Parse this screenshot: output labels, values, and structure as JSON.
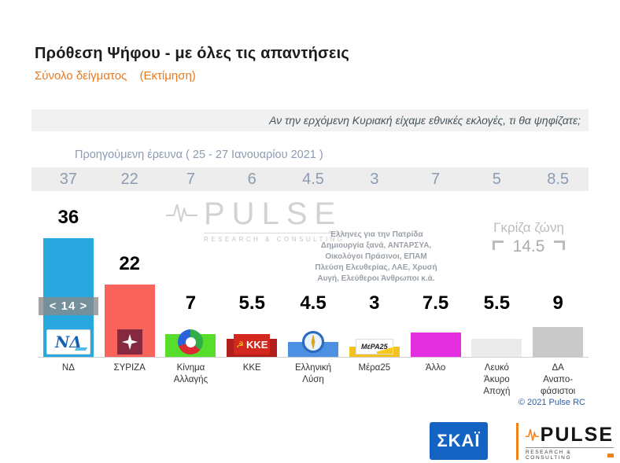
{
  "header": {
    "title": "Πρόθεση Ψήφου - με όλες τις απαντήσεις",
    "sample_label": "Σύνολο δείγματος",
    "estimate_label": "(Εκτίμηση)"
  },
  "question": "Αν την ερχόμενη Κυριακή είχαμε εθνικές εκλογές, τι θα ψηφίζατε;",
  "previous": {
    "label": "Προηγούμενη έρευνα ( 25 - 27  Ιανουαρίου  2021 )",
    "values": [
      "37",
      "22",
      "7",
      "6",
      "4.5",
      "3",
      "7",
      "5",
      "8.5"
    ]
  },
  "chart_data": {
    "type": "bar",
    "title": "Πρόθεση Ψήφου - με όλες τις απαντήσεις",
    "subtitle": "Σύνολο δείγματος (Εκτίμηση)",
    "categories": [
      "ΝΔ",
      "ΣΥΡΙΖΑ",
      "Κίνημα Αλλαγής",
      "ΚΚΕ",
      "Ελληνική Λύση",
      "Μέρα25",
      "Άλλο",
      "Λευκό Άκυρο Αποχή",
      "ΔΑ Αναποφάσιστοι"
    ],
    "values": [
      36,
      22,
      7,
      5.5,
      4.5,
      3,
      7.5,
      5.5,
      9
    ],
    "display_values": [
      "36",
      "22",
      "7",
      "5.5",
      "4.5",
      "3",
      "7.5",
      "5.5",
      "9"
    ],
    "previous_values": [
      37,
      22,
      7,
      6,
      4.5,
      3,
      7,
      5,
      8.5
    ],
    "colors": [
      "#29a8e0",
      "#fa625c",
      "#57dd2b",
      "#b01f1b",
      "#4b90e2",
      "#f2c31c",
      "#e32fe0",
      "#ebebeb",
      "#c9c9c9"
    ],
    "slugs": [
      "nd",
      "syriza",
      "kinima-allagis",
      "kke",
      "elliniki-lysi",
      "mera25",
      "allo",
      "lefko-akyro-apochi",
      "da-anapofasistoi"
    ],
    "label_lines": [
      [
        "ΝΔ"
      ],
      [
        "ΣΥΡΙΖΑ"
      ],
      [
        "Κίνημα",
        "Αλλαγής"
      ],
      [
        "ΚΚΕ"
      ],
      [
        "Ελληνική",
        "Λύση"
      ],
      [
        "Μέρα25"
      ],
      [
        "Άλλο"
      ],
      [
        "Λευκό",
        "Άκυρο",
        "Αποχή"
      ],
      [
        "ΔΑ",
        "Αναπο-",
        "φάσιστοι"
      ]
    ],
    "logos": [
      {
        "id": "nd",
        "text": "ΝΔ"
      },
      {
        "id": "syriza"
      },
      {
        "id": "kinal"
      },
      {
        "id": "kke",
        "text": "ΚΚΕ",
        "emblem": "☭"
      },
      {
        "id": "el"
      },
      {
        "id": "mera",
        "text": "ΜέΡΑ25"
      },
      null,
      null,
      null
    ],
    "ylim": [
      0,
      40
    ],
    "grid": false,
    "legend": false,
    "annotations": {
      "nd_syriza_diff": "< 14 >",
      "gray_zone_label": "Γκρίζα ζώνη",
      "gray_zone_value": "14.5",
      "other_parties_note": [
        "Έλληνες για την Πατρίδα",
        "Δημιουργία ξανά, ΑΝΤΑΡΣΥΑ,",
        "Οικολόγοι Πράσινοι, ΕΠΑΜ",
        "Πλεύση Ελευθερίας, ΛΑΕ, Χρυσή",
        "Αυγή, Ελεύθεροι Άνθρωποι κ.ά."
      ]
    }
  },
  "watermark": {
    "name": "PULSE",
    "sub": "RESEARCH & CONSULTING"
  },
  "footer": {
    "copyright": "© 2021 Pulse RC",
    "skai": "ΣΚΑΪ",
    "pulse_name": "PULSE",
    "pulse_sub": "RESEARCH & CONSULTING"
  }
}
